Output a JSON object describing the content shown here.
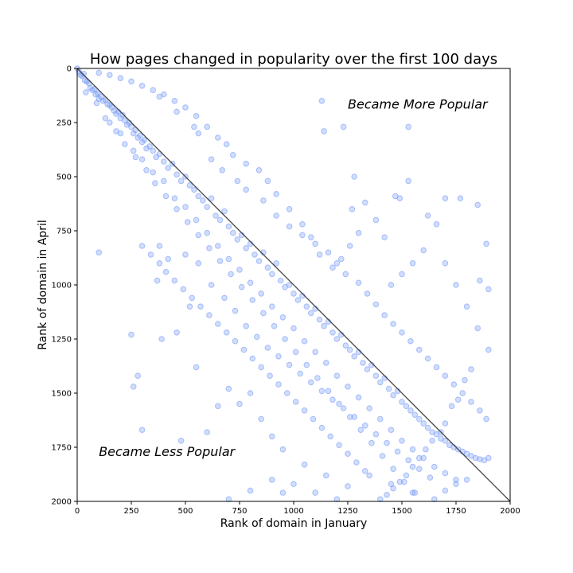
{
  "chart_data": {
    "type": "scatter",
    "title": "How pages changed in popularity over the first 100 days",
    "xlabel": "Rank of domain in January",
    "ylabel": "Rank of domain in April",
    "xlim": [
      0,
      2000
    ],
    "ylim": [
      2000,
      0
    ],
    "y_inverted": true,
    "grid": false,
    "x_ticks": [
      "0",
      "250",
      "500",
      "750",
      "1000",
      "1250",
      "1500",
      "1750",
      "2000"
    ],
    "y_ticks": [
      "0",
      "250",
      "500",
      "750",
      "1000",
      "1250",
      "1500",
      "1750",
      "2000"
    ],
    "reference_line": {
      "from": [
        0,
        0
      ],
      "to": [
        2000,
        2000
      ]
    },
    "annotations": [
      {
        "text": "Became More Popular",
        "x": 1250,
        "y": 185
      },
      {
        "text": "Became Less Popular",
        "x": 100,
        "y": 1790
      }
    ],
    "colors": {
      "points": "#6f95f5",
      "line": "#404040"
    },
    "points": [
      [
        0,
        0
      ],
      [
        8,
        15
      ],
      [
        15,
        30
      ],
      [
        22,
        35
      ],
      [
        30,
        25
      ],
      [
        35,
        55
      ],
      [
        45,
        60
      ],
      [
        55,
        70
      ],
      [
        60,
        90
      ],
      [
        70,
        100
      ],
      [
        80,
        95
      ],
      [
        85,
        120
      ],
      [
        95,
        115
      ],
      [
        100,
        140
      ],
      [
        110,
        130
      ],
      [
        120,
        150
      ],
      [
        130,
        145
      ],
      [
        140,
        165
      ],
      [
        150,
        170
      ],
      [
        160,
        180
      ],
      [
        170,
        195
      ],
      [
        180,
        210
      ],
      [
        190,
        200
      ],
      [
        200,
        230
      ],
      [
        210,
        215
      ],
      [
        220,
        240
      ],
      [
        230,
        260
      ],
      [
        240,
        250
      ],
      [
        250,
        270
      ],
      [
        260,
        300
      ],
      [
        270,
        285
      ],
      [
        280,
        320
      ],
      [
        290,
        310
      ],
      [
        300,
        340
      ],
      [
        310,
        330
      ],
      [
        320,
        370
      ],
      [
        335,
        360
      ],
      [
        350,
        380
      ],
      [
        365,
        410
      ],
      [
        380,
        395
      ],
      [
        400,
        430
      ],
      [
        420,
        460
      ],
      [
        440,
        440
      ],
      [
        460,
        490
      ],
      [
        480,
        520
      ],
      [
        500,
        500
      ],
      [
        520,
        540
      ],
      [
        540,
        560
      ],
      [
        560,
        590
      ],
      [
        580,
        610
      ],
      [
        600,
        640
      ],
      [
        620,
        600
      ],
      [
        640,
        680
      ],
      [
        660,
        700
      ],
      [
        680,
        660
      ],
      [
        700,
        730
      ],
      [
        720,
        760
      ],
      [
        740,
        790
      ],
      [
        760,
        770
      ],
      [
        780,
        830
      ],
      [
        800,
        810
      ],
      [
        820,
        860
      ],
      [
        840,
        890
      ],
      [
        860,
        850
      ],
      [
        880,
        920
      ],
      [
        900,
        950
      ],
      [
        920,
        900
      ],
      [
        940,
        980
      ],
      [
        960,
        1010
      ],
      [
        980,
        1000
      ],
      [
        1000,
        1040
      ],
      [
        1020,
        1070
      ],
      [
        1040,
        1050
      ],
      [
        1060,
        1100
      ],
      [
        1080,
        1130
      ],
      [
        1100,
        1110
      ],
      [
        1120,
        1160
      ],
      [
        1140,
        1190
      ],
      [
        1160,
        1170
      ],
      [
        1180,
        1220
      ],
      [
        1200,
        1250
      ],
      [
        1220,
        1230
      ],
      [
        1240,
        1280
      ],
      [
        1260,
        1300
      ],
      [
        1280,
        1330
      ],
      [
        1300,
        1310
      ],
      [
        1320,
        1360
      ],
      [
        1340,
        1390
      ],
      [
        1360,
        1370
      ],
      [
        1380,
        1420
      ],
      [
        1400,
        1450
      ],
      [
        1420,
        1430
      ],
      [
        1440,
        1480
      ],
      [
        1460,
        1510
      ],
      [
        1480,
        1490
      ],
      [
        1500,
        1540
      ],
      [
        1520,
        1560
      ],
      [
        1540,
        1580
      ],
      [
        1560,
        1600
      ],
      [
        1580,
        1620
      ],
      [
        1600,
        1640
      ],
      [
        1620,
        1660
      ],
      [
        1640,
        1680
      ],
      [
        1660,
        1690
      ],
      [
        1680,
        1710
      ],
      [
        1700,
        1720
      ],
      [
        1720,
        1740
      ],
      [
        1740,
        1750
      ],
      [
        1760,
        1760
      ],
      [
        1780,
        1770
      ],
      [
        1800,
        1780
      ],
      [
        1820,
        1790
      ],
      [
        1840,
        1800
      ],
      [
        1860,
        1805
      ],
      [
        1880,
        1810
      ],
      [
        1900,
        1800
      ],
      [
        40,
        110
      ],
      [
        90,
        160
      ],
      [
        150,
        250
      ],
      [
        200,
        300
      ],
      [
        260,
        380
      ],
      [
        300,
        420
      ],
      [
        350,
        480
      ],
      [
        400,
        520
      ],
      [
        450,
        600
      ],
      [
        500,
        640
      ],
      [
        550,
        700
      ],
      [
        600,
        760
      ],
      [
        650,
        820
      ],
      [
        700,
        880
      ],
      [
        750,
        930
      ],
      [
        800,
        990
      ],
      [
        850,
        1040
      ],
      [
        900,
        1100
      ],
      [
        950,
        1150
      ],
      [
        1000,
        1200
      ],
      [
        1050,
        1260
      ],
      [
        1100,
        1310
      ],
      [
        1150,
        1360
      ],
      [
        1200,
        1420
      ],
      [
        1250,
        1470
      ],
      [
        1300,
        1520
      ],
      [
        1350,
        1570
      ],
      [
        1400,
        1620
      ],
      [
        1450,
        1670
      ],
      [
        1500,
        1720
      ],
      [
        1550,
        1760
      ],
      [
        1600,
        1800
      ],
      [
        1650,
        1840
      ],
      [
        1700,
        1870
      ],
      [
        1750,
        1900
      ],
      [
        1000,
        1920
      ],
      [
        1100,
        1960
      ],
      [
        1200,
        1990
      ],
      [
        700,
        1990
      ],
      [
        800,
        1950
      ],
      [
        900,
        1900
      ],
      [
        950,
        1960
      ],
      [
        600,
        1680
      ],
      [
        650,
        1560
      ],
      [
        700,
        1480
      ],
      [
        750,
        1550
      ],
      [
        800,
        1500
      ],
      [
        850,
        1620
      ],
      [
        900,
        1700
      ],
      [
        950,
        1760
      ],
      [
        1050,
        1830
      ],
      [
        1150,
        1880
      ],
      [
        1250,
        1930
      ],
      [
        1350,
        1880
      ],
      [
        1450,
        1920
      ],
      [
        1550,
        1960
      ],
      [
        1650,
        1990
      ],
      [
        1700,
        1950
      ],
      [
        1750,
        1920
      ],
      [
        1800,
        1900
      ],
      [
        550,
        1380
      ],
      [
        520,
        1100
      ],
      [
        460,
        1220
      ],
      [
        390,
        1250
      ],
      [
        370,
        980
      ],
      [
        380,
        820
      ],
      [
        420,
        880
      ],
      [
        500,
        860
      ],
      [
        560,
        900
      ],
      [
        620,
        1000
      ],
      [
        680,
        1060
      ],
      [
        730,
        1120
      ],
      [
        780,
        1190
      ],
      [
        830,
        1240
      ],
      [
        880,
        1290
      ],
      [
        930,
        1330
      ],
      [
        980,
        1370
      ],
      [
        1030,
        1410
      ],
      [
        1080,
        1450
      ],
      [
        1130,
        1490
      ],
      [
        1180,
        1530
      ],
      [
        1230,
        1570
      ],
      [
        1280,
        1610
      ],
      [
        1330,
        1650
      ],
      [
        1380,
        1690
      ],
      [
        1430,
        1730
      ],
      [
        1480,
        1770
      ],
      [
        1530,
        1810
      ],
      [
        1580,
        1850
      ],
      [
        1630,
        1890
      ],
      [
        250,
        1230
      ],
      [
        260,
        1470
      ],
      [
        300,
        1670
      ],
      [
        480,
        1720
      ],
      [
        100,
        850
      ],
      [
        280,
        1420
      ],
      [
        1130,
        150
      ],
      [
        1230,
        270
      ],
      [
        1530,
        270
      ],
      [
        1140,
        290
      ],
      [
        1280,
        500
      ],
      [
        1270,
        650
      ],
      [
        1330,
        620
      ],
      [
        1470,
        590
      ],
      [
        1490,
        600
      ],
      [
        1530,
        520
      ],
      [
        1620,
        680
      ],
      [
        1660,
        720
      ],
      [
        1700,
        600
      ],
      [
        1770,
        600
      ],
      [
        1850,
        630
      ],
      [
        1890,
        810
      ],
      [
        1860,
        980
      ],
      [
        1900,
        1020
      ],
      [
        1700,
        900
      ],
      [
        1750,
        1000
      ],
      [
        1800,
        1100
      ],
      [
        1850,
        1200
      ],
      [
        1900,
        1300
      ],
      [
        1600,
        840
      ],
      [
        1550,
        900
      ],
      [
        1500,
        950
      ],
      [
        1450,
        1000
      ],
      [
        1420,
        780
      ],
      [
        1380,
        700
      ],
      [
        1300,
        760
      ],
      [
        1260,
        820
      ],
      [
        1220,
        880
      ],
      [
        1180,
        920
      ],
      [
        1120,
        860
      ],
      [
        1080,
        780
      ],
      [
        1040,
        720
      ],
      [
        980,
        650
      ],
      [
        920,
        580
      ],
      [
        880,
        520
      ],
      [
        840,
        470
      ],
      [
        780,
        440
      ],
      [
        720,
        400
      ],
      [
        690,
        350
      ],
      [
        650,
        320
      ],
      [
        600,
        270
      ],
      [
        550,
        220
      ],
      [
        500,
        180
      ],
      [
        450,
        150
      ],
      [
        400,
        120
      ],
      [
        350,
        100
      ],
      [
        300,
        80
      ],
      [
        250,
        60
      ],
      [
        200,
        45
      ],
      [
        150,
        30
      ],
      [
        100,
        20
      ],
      [
        380,
        130
      ],
      [
        460,
        200
      ],
      [
        540,
        270
      ],
      [
        560,
        300
      ],
      [
        620,
        420
      ],
      [
        670,
        470
      ],
      [
        740,
        520
      ],
      [
        780,
        560
      ],
      [
        860,
        610
      ],
      [
        920,
        680
      ],
      [
        980,
        730
      ],
      [
        1040,
        770
      ],
      [
        1100,
        810
      ],
      [
        1160,
        850
      ],
      [
        1200,
        900
      ],
      [
        1240,
        950
      ],
      [
        1300,
        990
      ],
      [
        1340,
        1040
      ],
      [
        1380,
        1090
      ],
      [
        1420,
        1140
      ],
      [
        1460,
        1180
      ],
      [
        1500,
        1220
      ],
      [
        1540,
        1260
      ],
      [
        1580,
        1300
      ],
      [
        1620,
        1340
      ],
      [
        1660,
        1380
      ],
      [
        1700,
        1420
      ],
      [
        1740,
        1460
      ],
      [
        1780,
        1500
      ],
      [
        1820,
        1540
      ],
      [
        1860,
        1580
      ],
      [
        1890,
        1620
      ],
      [
        1820,
        1390
      ],
      [
        1790,
        1440
      ],
      [
        1760,
        1530
      ],
      [
        1730,
        1560
      ],
      [
        1700,
        1640
      ],
      [
        1680,
        1680
      ],
      [
        1640,
        1720
      ],
      [
        1610,
        1760
      ],
      [
        1580,
        1800
      ],
      [
        1550,
        1840
      ],
      [
        1520,
        1880
      ],
      [
        1490,
        1910
      ],
      [
        1460,
        1940
      ],
      [
        1430,
        1970
      ],
      [
        1400,
        1990
      ],
      [
        1330,
        1860
      ],
      [
        1290,
        1820
      ],
      [
        1250,
        1780
      ],
      [
        1210,
        1740
      ],
      [
        1170,
        1700
      ],
      [
        1130,
        1660
      ],
      [
        1090,
        1620
      ],
      [
        1050,
        1580
      ],
      [
        1010,
        1540
      ],
      [
        970,
        1500
      ],
      [
        930,
        1460
      ],
      [
        890,
        1420
      ],
      [
        850,
        1380
      ],
      [
        810,
        1340
      ],
      [
        770,
        1300
      ],
      [
        730,
        1260
      ],
      [
        690,
        1220
      ],
      [
        650,
        1180
      ],
      [
        610,
        1140
      ],
      [
        570,
        1100
      ],
      [
        530,
        1060
      ],
      [
        490,
        1020
      ],
      [
        450,
        980
      ],
      [
        410,
        940
      ],
      [
        380,
        900
      ],
      [
        340,
        860
      ],
      [
        300,
        820
      ],
      [
        130,
        230
      ],
      [
        180,
        290
      ],
      [
        220,
        350
      ],
      [
        270,
        410
      ],
      [
        320,
        470
      ],
      [
        360,
        530
      ],
      [
        410,
        590
      ],
      [
        460,
        650
      ],
      [
        510,
        710
      ],
      [
        560,
        770
      ],
      [
        610,
        830
      ],
      [
        660,
        890
      ],
      [
        710,
        950
      ],
      [
        760,
        1010
      ],
      [
        810,
        1070
      ],
      [
        860,
        1130
      ],
      [
        910,
        1190
      ],
      [
        960,
        1250
      ],
      [
        1010,
        1310
      ],
      [
        1060,
        1370
      ],
      [
        1110,
        1430
      ],
      [
        1160,
        1490
      ],
      [
        1210,
        1550
      ],
      [
        1260,
        1610
      ],
      [
        1310,
        1670
      ],
      [
        1360,
        1730
      ],
      [
        1410,
        1790
      ],
      [
        1460,
        1850
      ],
      [
        1510,
        1910
      ],
      [
        1560,
        1960
      ]
    ]
  }
}
